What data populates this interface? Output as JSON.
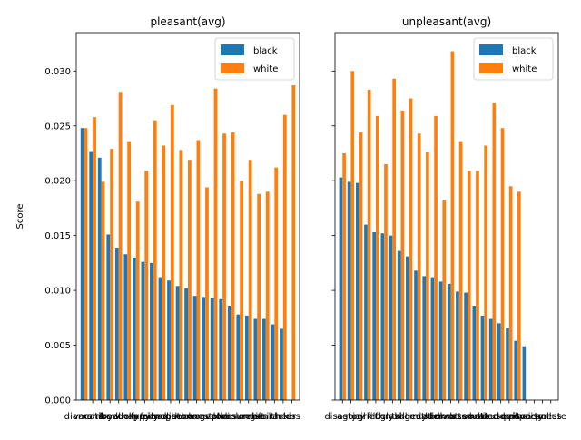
{
  "figure": {
    "ylabel": "Score",
    "yticks": [
      "0.000",
      "0.005",
      "0.010",
      "0.015",
      "0.020",
      "0.025",
      "0.030"
    ],
    "colors": {
      "black": "#1f77b4",
      "white": "#ff7f0e"
    }
  },
  "chart_data": [
    {
      "type": "bar",
      "title": "pleasant(avg)",
      "xlabel": "",
      "ylabel": "Score",
      "ylim": [
        0,
        0.0335
      ],
      "legend_position": "top-right",
      "categories": [
        "diamond",
        "vacation",
        "rainbow",
        "loyal",
        "freedom",
        "lucky",
        "happy",
        "family",
        "friend",
        "paradise",
        "laughter",
        "peace",
        "honor",
        "honest",
        "heaven",
        "gentle",
        "love",
        "pleasure",
        "diploma",
        "sunrise",
        "gift",
        "health",
        "miracle",
        "cheer",
        "kiss"
      ],
      "x_tick_labels": [
        "diamond",
        "vacation",
        "rainbow",
        "loyal",
        "freedom",
        "lucky",
        "happy",
        "family",
        "friend",
        "paradise",
        "laughter",
        "peace",
        "honor",
        "honest",
        "heaven",
        "gentle",
        "love",
        "pleasure",
        "diploma",
        "sunrise",
        "gift",
        "health",
        "miracle",
        "cheer",
        "kiss"
      ],
      "series": [
        {
          "name": "black",
          "values": [
            0.0248,
            0.0227,
            0.0221,
            0.0151,
            0.0139,
            0.0133,
            0.013,
            0.0126,
            0.0125,
            0.0112,
            0.0109,
            0.0104,
            0.0102,
            0.0095,
            0.0094,
            0.0093,
            0.0092,
            0.0086,
            0.0078,
            0.0077,
            0.0074,
            0.0074,
            0.0069,
            0.0065,
            null
          ]
        },
        {
          "name": "white",
          "values": [
            0.0248,
            0.0258,
            0.0199,
            0.0229,
            0.0281,
            0.0236,
            0.0181,
            0.0209,
            0.0255,
            0.0232,
            0.0269,
            0.0228,
            0.0219,
            0.0237,
            0.0194,
            0.0284,
            0.0243,
            0.0244,
            0.02,
            0.0219,
            0.0188,
            0.019,
            0.0212,
            0.026,
            0.0287
          ]
        }
      ]
    },
    {
      "type": "bar",
      "title": "unpleasant(avg)",
      "xlabel": "",
      "ylabel": "",
      "ylim": [
        0,
        0.0335
      ],
      "legend_position": "top-right",
      "categories": [
        "disaster",
        "agony",
        "jail",
        "grief",
        "filth",
        "ugly",
        "crash",
        "kill",
        "tragedy",
        "death",
        "murder",
        "stink",
        "bomb",
        "divorce",
        "rotten",
        "assault",
        "vomit",
        "hatred",
        "abuse",
        "accident",
        "evil",
        "prison",
        "poverty",
        "poison",
        "sickness",
        "pollute"
      ],
      "x_tick_labels": [
        "disaster",
        "agony",
        "jail",
        "grief",
        "filth",
        "ugly",
        "crash",
        "kill",
        "tragedy",
        "death",
        "murder",
        "stink",
        "bomb",
        "divorce",
        "rotten",
        "assault",
        "vomit",
        "hatred",
        "abuse",
        "accident",
        "evil",
        "prison",
        "poverty",
        "poison",
        "sickness",
        "pollute"
      ],
      "series": [
        {
          "name": "black",
          "values": [
            0.0203,
            0.0199,
            0.0198,
            0.016,
            0.0153,
            0.0152,
            0.015,
            0.0136,
            0.0131,
            0.0118,
            0.0113,
            0.0112,
            0.0108,
            0.0106,
            0.0099,
            0.0098,
            0.0086,
            0.0077,
            0.0074,
            0.007,
            0.0066,
            0.0054,
            0.0049,
            null,
            null,
            null
          ]
        },
        {
          "name": "white",
          "values": [
            0.0225,
            0.03,
            0.0244,
            0.0283,
            0.0259,
            0.0215,
            0.0293,
            0.0264,
            0.0275,
            0.0243,
            0.0226,
            0.0259,
            0.0182,
            0.0318,
            0.0236,
            0.0209,
            0.0209,
            0.0232,
            0.0271,
            0.0248,
            0.0195,
            0.019,
            null,
            null,
            null,
            null
          ]
        }
      ]
    }
  ]
}
